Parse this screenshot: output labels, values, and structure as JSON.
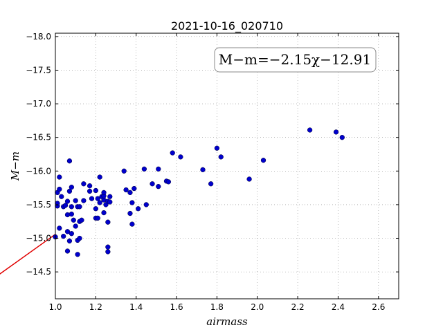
{
  "chart_data": {
    "type": "scatter",
    "title": "2021-10-16_020710",
    "xlabel": "airmass",
    "ylabel": "M−m",
    "annotation": {
      "text": "M−m=−2.15χ−12.91",
      "position": "top-right"
    },
    "xlim": [
      1.0,
      2.7
    ],
    "ylim": [
      -18.05,
      -14.1
    ],
    "y_inverted": true,
    "grid": true,
    "x_ticks": [
      "1.0",
      "1.2",
      "1.4",
      "1.6",
      "1.8",
      "2.0",
      "2.2",
      "2.4",
      "2.6"
    ],
    "y_ticks": [
      "−14.5",
      "−15.0",
      "−15.5",
      "−16.0",
      "−16.5",
      "−17.0",
      "−17.5",
      "−18.0"
    ],
    "colors": {
      "points": "#0000cc",
      "fit_line": "#e00000",
      "grid": "#888888"
    },
    "fit": {
      "slope": -2.15,
      "intercept": -12.91
    },
    "series": [
      {
        "points": [
          {
            "x": 1.0,
            "y": -15.02
          },
          {
            "x": 1.01,
            "y": -15.48
          },
          {
            "x": 1.01,
            "y": -15.52
          },
          {
            "x": 1.01,
            "y": -15.68
          },
          {
            "x": 1.02,
            "y": -15.73
          },
          {
            "x": 1.02,
            "y": -15.91
          },
          {
            "x": 1.02,
            "y": -15.15
          },
          {
            "x": 1.03,
            "y": -15.62
          },
          {
            "x": 1.04,
            "y": -15.03
          },
          {
            "x": 1.04,
            "y": -15.47
          },
          {
            "x": 1.05,
            "y": -15.49
          },
          {
            "x": 1.06,
            "y": -14.81
          },
          {
            "x": 1.06,
            "y": -15.1
          },
          {
            "x": 1.06,
            "y": -15.35
          },
          {
            "x": 1.06,
            "y": -15.55
          },
          {
            "x": 1.07,
            "y": -14.96
          },
          {
            "x": 1.07,
            "y": -15.7
          },
          {
            "x": 1.07,
            "y": -16.15
          },
          {
            "x": 1.08,
            "y": -15.07
          },
          {
            "x": 1.08,
            "y": -15.36
          },
          {
            "x": 1.08,
            "y": -15.47
          },
          {
            "x": 1.08,
            "y": -15.76
          },
          {
            "x": 1.09,
            "y": -15.27
          },
          {
            "x": 1.1,
            "y": -15.56
          },
          {
            "x": 1.1,
            "y": -15.18
          },
          {
            "x": 1.11,
            "y": -14.76
          },
          {
            "x": 1.11,
            "y": -14.97
          },
          {
            "x": 1.11,
            "y": -15.47
          },
          {
            "x": 1.12,
            "y": -15.0
          },
          {
            "x": 1.12,
            "y": -15.25
          },
          {
            "x": 1.12,
            "y": -15.47
          },
          {
            "x": 1.13,
            "y": -15.27
          },
          {
            "x": 1.14,
            "y": -15.56
          },
          {
            "x": 1.14,
            "y": -15.81
          },
          {
            "x": 1.17,
            "y": -15.78
          },
          {
            "x": 1.17,
            "y": -15.7
          },
          {
            "x": 1.18,
            "y": -15.59
          },
          {
            "x": 1.2,
            "y": -15.3
          },
          {
            "x": 1.2,
            "y": -15.44
          },
          {
            "x": 1.2,
            "y": -15.71
          },
          {
            "x": 1.21,
            "y": -15.3
          },
          {
            "x": 1.21,
            "y": -15.59
          },
          {
            "x": 1.22,
            "y": -15.91
          },
          {
            "x": 1.22,
            "y": -15.53
          },
          {
            "x": 1.23,
            "y": -15.62
          },
          {
            "x": 1.24,
            "y": -15.57
          },
          {
            "x": 1.24,
            "y": -15.63
          },
          {
            "x": 1.24,
            "y": -15.38
          },
          {
            "x": 1.24,
            "y": -15.68
          },
          {
            "x": 1.25,
            "y": -15.5
          },
          {
            "x": 1.26,
            "y": -14.8
          },
          {
            "x": 1.26,
            "y": -14.87
          },
          {
            "x": 1.26,
            "y": -15.24
          },
          {
            "x": 1.26,
            "y": -15.55
          },
          {
            "x": 1.27,
            "y": -15.62
          },
          {
            "x": 1.27,
            "y": -15.54
          },
          {
            "x": 1.34,
            "y": -16.0
          },
          {
            "x": 1.35,
            "y": -15.72
          },
          {
            "x": 1.37,
            "y": -15.37
          },
          {
            "x": 1.37,
            "y": -15.68
          },
          {
            "x": 1.38,
            "y": -15.21
          },
          {
            "x": 1.38,
            "y": -15.53
          },
          {
            "x": 1.39,
            "y": -15.74
          },
          {
            "x": 1.41,
            "y": -15.44
          },
          {
            "x": 1.44,
            "y": -16.03
          },
          {
            "x": 1.45,
            "y": -15.5
          },
          {
            "x": 1.48,
            "y": -15.81
          },
          {
            "x": 1.51,
            "y": -15.77
          },
          {
            "x": 1.51,
            "y": -16.03
          },
          {
            "x": 1.55,
            "y": -15.85
          },
          {
            "x": 1.56,
            "y": -15.84
          },
          {
            "x": 1.58,
            "y": -16.27
          },
          {
            "x": 1.62,
            "y": -16.21
          },
          {
            "x": 1.73,
            "y": -16.02
          },
          {
            "x": 1.77,
            "y": -15.81
          },
          {
            "x": 1.8,
            "y": -16.34
          },
          {
            "x": 1.82,
            "y": -16.21
          },
          {
            "x": 1.96,
            "y": -15.88
          },
          {
            "x": 2.03,
            "y": -16.16
          },
          {
            "x": 2.26,
            "y": -16.61
          },
          {
            "x": 2.39,
            "y": -16.58
          },
          {
            "x": 2.42,
            "y": -16.5
          }
        ]
      }
    ]
  }
}
